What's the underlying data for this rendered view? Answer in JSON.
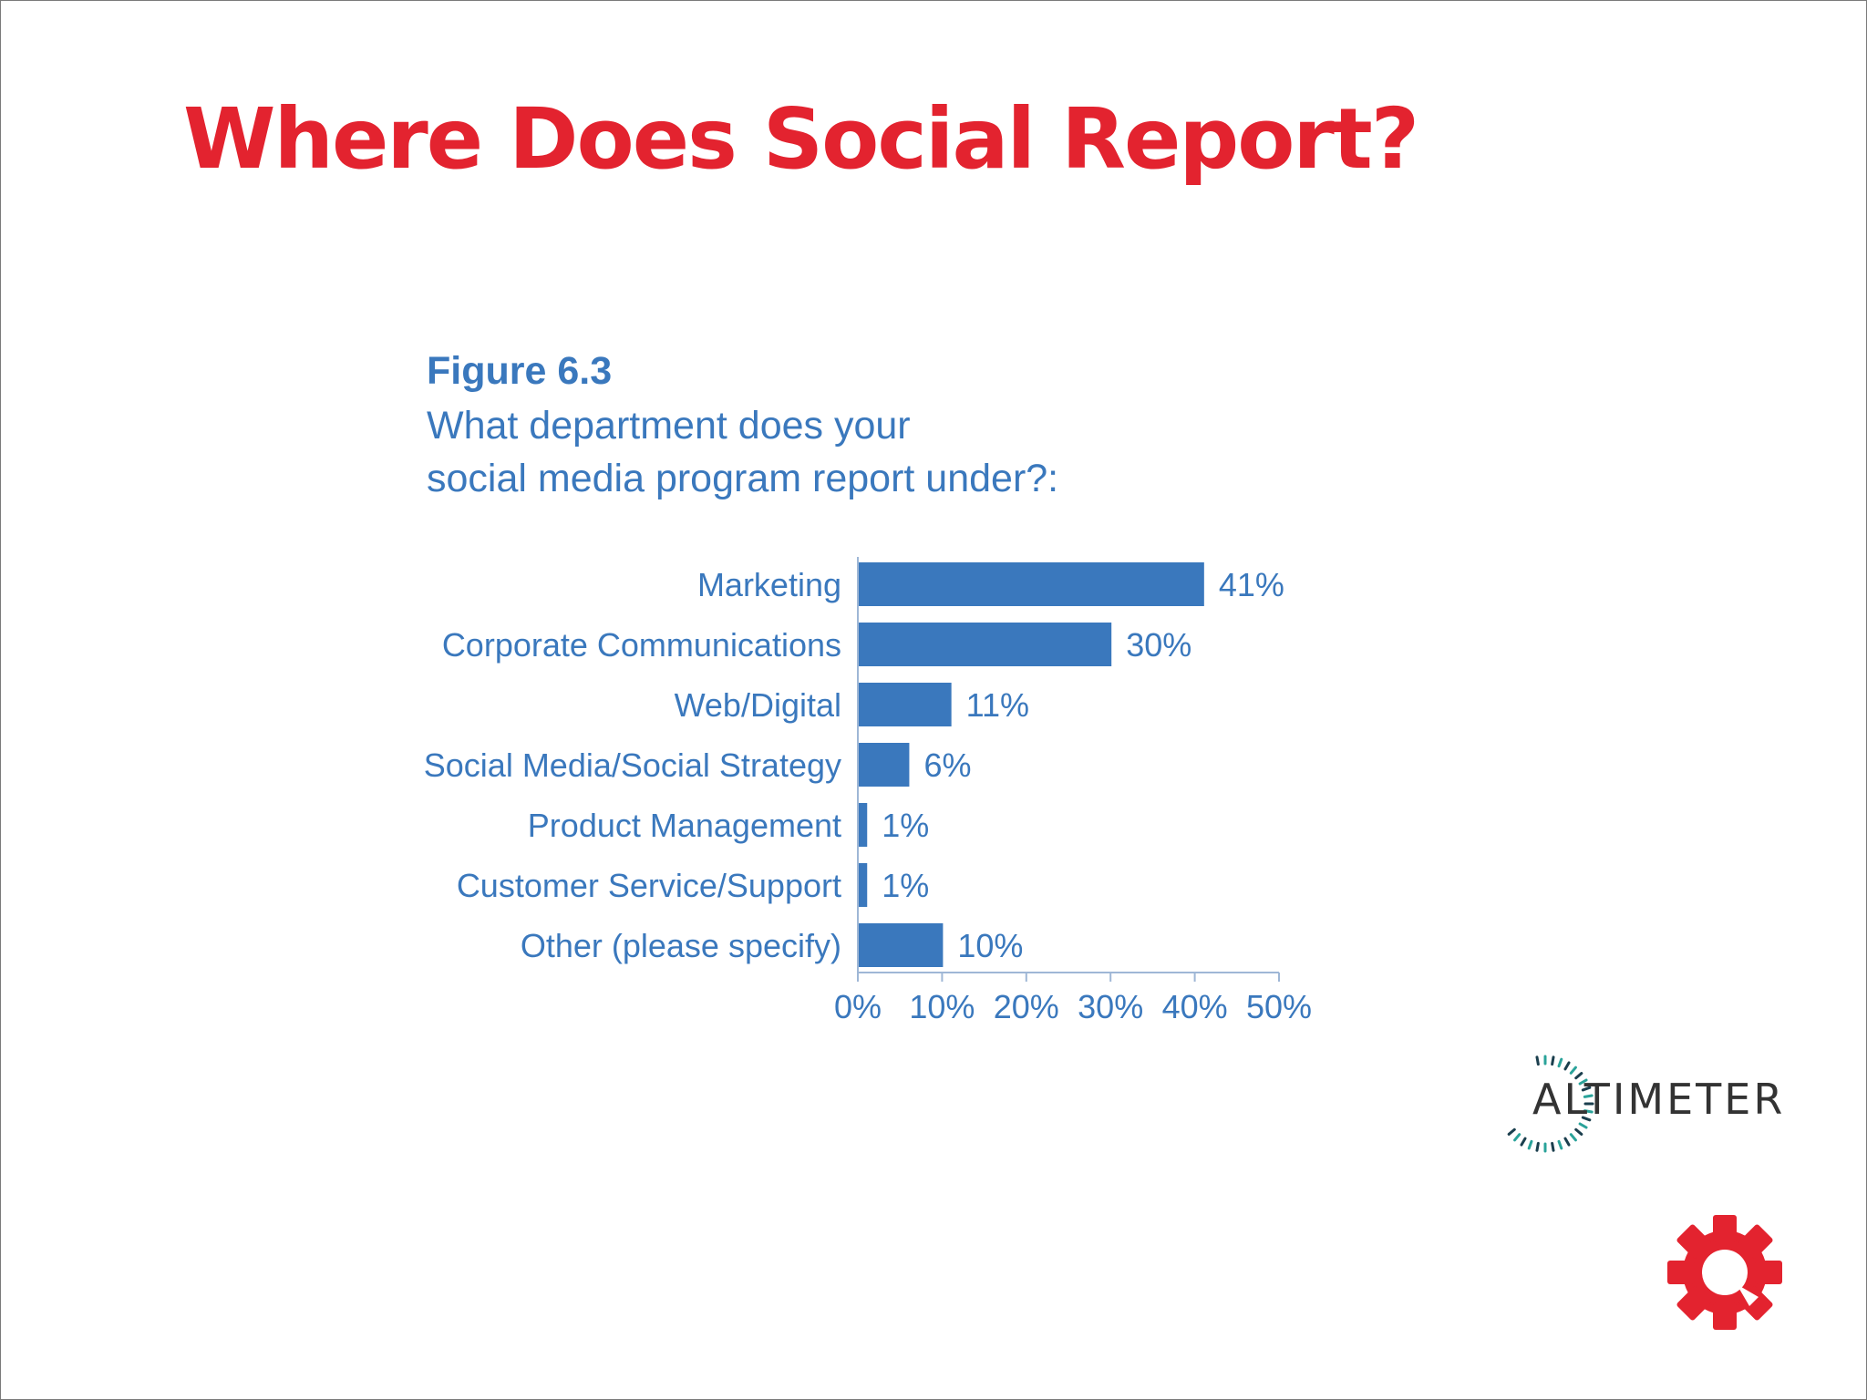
{
  "slide": {
    "title": "Where Does Social Report?"
  },
  "figure": {
    "label": "Figure 6.3",
    "question_line1": "What department does your",
    "question_line2": "social media program report under?:"
  },
  "chart_data": {
    "type": "bar",
    "orientation": "horizontal",
    "title": "What department does your social media program report under?:",
    "categories": [
      "Marketing",
      "Corporate Communications",
      "Web/Digital",
      "Social Media/Social Strategy",
      "Product Management",
      "Customer Service/Support",
      "Other (please specify)"
    ],
    "values": [
      41,
      30,
      11,
      6,
      1,
      1,
      10
    ],
    "value_labels": [
      "41%",
      "30%",
      "11%",
      "6%",
      "1%",
      "1%",
      "10%"
    ],
    "xlim": [
      0,
      50
    ],
    "xticks": [
      0,
      10,
      20,
      30,
      40,
      50
    ],
    "xtick_labels": [
      "0%",
      "10%",
      "20%",
      "30%",
      "40%",
      "50%"
    ],
    "xlabel": "",
    "ylabel": "",
    "grid": false,
    "bar_color": "#3a78bd",
    "text_color": "#3a78bd"
  },
  "branding": {
    "altimeter_logo_text": "ALTIMETER",
    "accent_color": "#e3232f",
    "icons": [
      "altimeter-dial-icon",
      "gear-logo-icon"
    ]
  }
}
